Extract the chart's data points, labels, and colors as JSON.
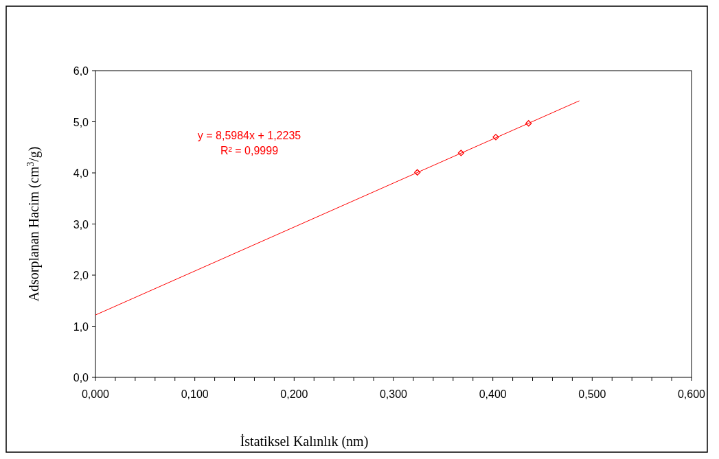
{
  "chart_data": {
    "type": "scatter",
    "xlabel": "İstatiksel Kalınlık (nm)",
    "ylabel": "Adsorplanan Hacim (cm$^{3}$/g)",
    "annotations": [
      "y = 8,5984x + 1,2235",
      "R² = 0,9999"
    ],
    "series": [
      {
        "color": "#ff0000",
        "marker": "diamond",
        "x": [
          0.324,
          0.368,
          0.403,
          0.436
        ],
        "values": [
          4.01,
          4.39,
          4.7,
          4.97
        ]
      },
      {
        "type": "line",
        "color": "#ff0000",
        "marker": "none",
        "x": [
          0,
          0.487
        ],
        "values": [
          1.22,
          5.41
        ]
      }
    ],
    "xlim": [
      0,
      0.6
    ],
    "xticks": [
      {
        "value": 0,
        "label": "0,000"
      },
      {
        "value": 0.02,
        "label": null
      },
      {
        "value": 0.04,
        "label": null
      },
      {
        "value": 0.06,
        "label": null
      },
      {
        "value": 0.08,
        "label": null
      },
      {
        "value": 0.1,
        "label": "0,100"
      },
      {
        "value": 0.12,
        "label": null
      },
      {
        "value": 0.14,
        "label": null
      },
      {
        "value": 0.16,
        "label": null
      },
      {
        "value": 0.18,
        "label": null
      },
      {
        "value": 0.2,
        "label": "0,200"
      },
      {
        "value": 0.22,
        "label": null
      },
      {
        "value": 0.24,
        "label": null
      },
      {
        "value": 0.26,
        "label": null
      },
      {
        "value": 0.28,
        "label": null
      },
      {
        "value": 0.3,
        "label": "0,300"
      },
      {
        "value": 0.32,
        "label": null
      },
      {
        "value": 0.34,
        "label": null
      },
      {
        "value": 0.36,
        "label": null
      },
      {
        "value": 0.38,
        "label": null
      },
      {
        "value": 0.4,
        "label": "0,400"
      },
      {
        "value": 0.42,
        "label": null
      },
      {
        "value": 0.44,
        "label": null
      },
      {
        "value": 0.46,
        "label": null
      },
      {
        "value": 0.48,
        "label": null
      },
      {
        "value": 0.5,
        "label": "0,500"
      },
      {
        "value": 0.52,
        "label": null
      },
      {
        "value": 0.54,
        "label": null
      },
      {
        "value": 0.56,
        "label": null
      },
      {
        "value": 0.58,
        "label": null
      },
      {
        "value": 0.6,
        "label": "0,600"
      }
    ],
    "ylim": [
      0,
      6
    ],
    "yticks": [
      {
        "value": 0,
        "label": "0,0"
      },
      {
        "value": 1,
        "label": "1,0"
      },
      {
        "value": 2,
        "label": "2,0"
      },
      {
        "value": 3,
        "label": "3,0"
      },
      {
        "value": 4,
        "label": "4,0"
      },
      {
        "value": 5,
        "label": "5,0"
      },
      {
        "value": 6,
        "label": "6,0"
      }
    ],
    "grid": false
  }
}
